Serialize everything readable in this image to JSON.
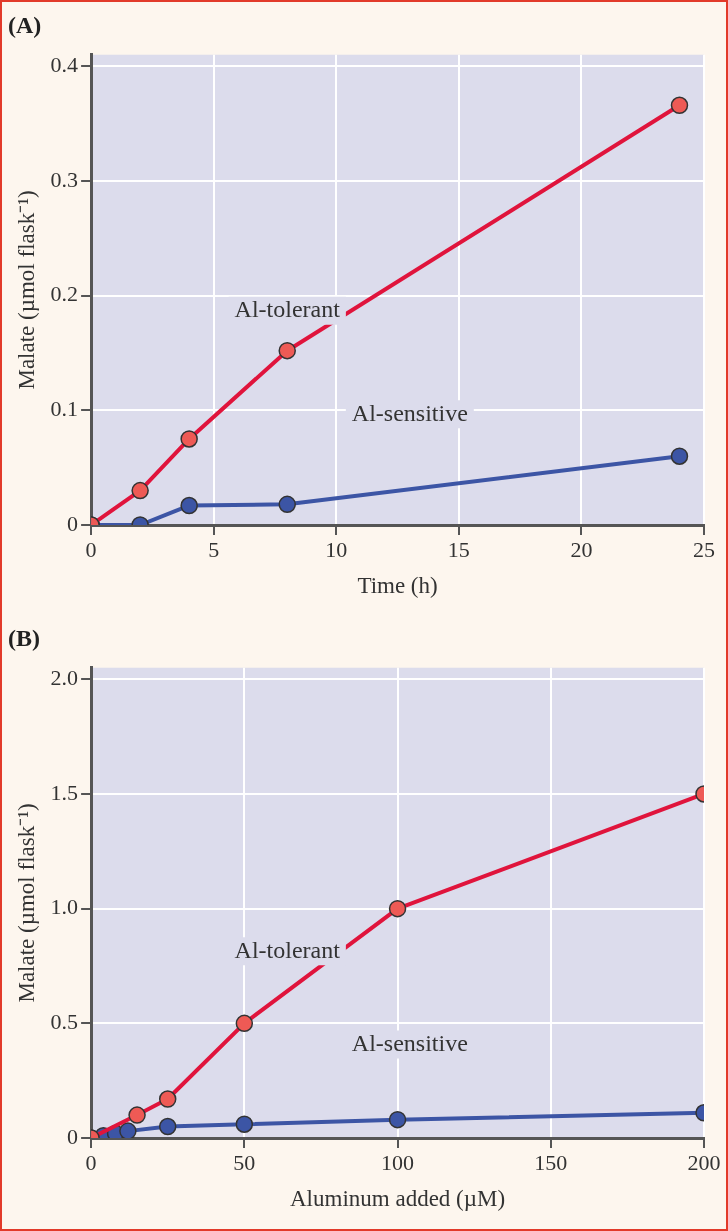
{
  "chart_data": [
    {
      "type": "line",
      "title": "(A)",
      "xlabel": "Time (h)",
      "ylabel": "Malate (µmol flask⁻¹)",
      "xlim": [
        0,
        25
      ],
      "xticks": [
        0,
        5,
        10,
        15,
        20,
        25
      ],
      "ylim": [
        0,
        0.41
      ],
      "yticks": [
        0,
        0.1,
        0.2,
        0.3,
        0.4
      ],
      "grid": true,
      "legend": false,
      "marker": "circle",
      "line_style": "solid",
      "series": [
        {
          "name": "Al-tolerant",
          "color": "#e0143c",
          "x": [
            0,
            2,
            4,
            8,
            24
          ],
          "values": [
            0,
            0.03,
            0.075,
            0.152,
            0.366
          ]
        },
        {
          "name": "Al-sensitive",
          "color": "#3c55a5",
          "x": [
            0,
            2,
            4,
            8,
            24
          ],
          "values": [
            0,
            0,
            0.017,
            0.018,
            0.06
          ]
        }
      ]
    },
    {
      "type": "line",
      "title": "(B)",
      "xlabel": "Aluminum added (µM)",
      "ylabel": "Malate (µmol flask⁻¹)",
      "xlim": [
        0,
        200
      ],
      "xticks": [
        0,
        50,
        100,
        150,
        200
      ],
      "ylim": [
        0,
        2.05
      ],
      "yticks": [
        0,
        {
          "value": 0.5,
          "label": "0.5"
        },
        {
          "value": 1,
          "label": "1.0"
        },
        {
          "value": 1.5,
          "label": "1.5"
        },
        {
          "value": 2,
          "label": "2.0"
        }
      ],
      "grid": true,
      "legend": false,
      "marker": "circle",
      "line_style": "solid",
      "series": [
        {
          "name": "Al-tolerant",
          "color": "#e0143c",
          "x": [
            0,
            15,
            25,
            50,
            100,
            200
          ],
          "values": [
            0,
            0.1,
            0.17,
            0.5,
            1.0,
            1.5
          ]
        },
        {
          "name": "Al-sensitive",
          "color": "#3c55a5",
          "x": [
            0,
            4,
            8,
            12,
            25,
            50,
            100,
            200
          ],
          "values": [
            0,
            0.01,
            0.02,
            0.03,
            0.05,
            0.06,
            0.08,
            0.11
          ]
        }
      ]
    }
  ]
}
